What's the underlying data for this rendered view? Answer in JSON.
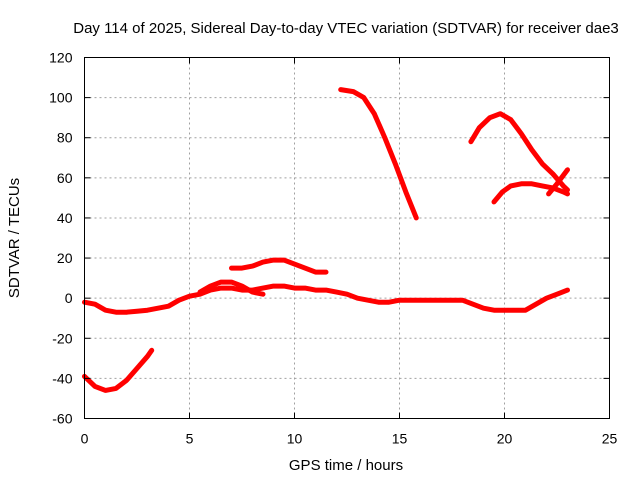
{
  "chart_data": {
    "type": "line",
    "title": "Day 114 of 2025, Sidereal Day-to-day VTEC variation (SDTVAR) for receiver dae3",
    "xlabel": "GPS time / hours",
    "ylabel": "SDTVAR / TECUs",
    "xlim": [
      0,
      25
    ],
    "ylim": [
      -60,
      120
    ],
    "xticks": [
      "0",
      "5",
      "10",
      "15",
      "20",
      "25"
    ],
    "yticks": [
      "-60",
      "-40",
      "-20",
      "0",
      "20",
      "40",
      "60",
      "80",
      "100",
      "120"
    ],
    "grid": true,
    "color": "#ff0000",
    "series": [
      {
        "name": "arc1",
        "points": [
          [
            0,
            -2
          ],
          [
            0.5,
            -3
          ],
          [
            1,
            -6
          ],
          [
            1.5,
            -7
          ],
          [
            2,
            -7
          ],
          [
            2.5,
            -6.5
          ],
          [
            3,
            -6
          ],
          [
            3.5,
            -5
          ],
          [
            4,
            -4
          ],
          [
            4.5,
            -1
          ],
          [
            5,
            1
          ],
          [
            5.5,
            2
          ],
          [
            6,
            4
          ],
          [
            6.5,
            5
          ],
          [
            7,
            5
          ],
          [
            7.5,
            4
          ],
          [
            8,
            4
          ],
          [
            8.5,
            5
          ],
          [
            9,
            6
          ],
          [
            9.5,
            6
          ],
          [
            10,
            5
          ],
          [
            10.5,
            5
          ],
          [
            11,
            4
          ],
          [
            11.5,
            4
          ],
          [
            12,
            3
          ],
          [
            12.5,
            2
          ],
          [
            13,
            0
          ],
          [
            13.5,
            -1
          ],
          [
            14,
            -2
          ],
          [
            14.5,
            -2
          ],
          [
            15,
            -1
          ],
          [
            15.5,
            -1
          ],
          [
            16,
            -1
          ],
          [
            16.5,
            -1
          ],
          [
            17,
            -1
          ],
          [
            17.5,
            -1
          ],
          [
            18,
            -1
          ],
          [
            18.5,
            -3
          ],
          [
            19,
            -5
          ],
          [
            19.5,
            -6
          ],
          [
            20,
            -6
          ],
          [
            20.5,
            -6
          ],
          [
            21,
            -6
          ],
          [
            21.5,
            -3
          ],
          [
            22,
            0
          ],
          [
            22.5,
            2
          ],
          [
            23,
            4
          ]
        ]
      },
      {
        "name": "arc2",
        "points": [
          [
            0,
            -39
          ],
          [
            0.5,
            -44
          ],
          [
            1,
            -46
          ],
          [
            1.5,
            -45
          ],
          [
            2,
            -41
          ],
          [
            2.5,
            -35
          ],
          [
            3,
            -29
          ],
          [
            3.2,
            -26
          ]
        ]
      },
      {
        "name": "arc3",
        "points": [
          [
            5.5,
            3
          ],
          [
            6,
            6
          ],
          [
            6.5,
            8
          ],
          [
            7,
            8
          ],
          [
            7.5,
            6
          ],
          [
            8,
            3
          ],
          [
            8.5,
            2
          ]
        ]
      },
      {
        "name": "arc4",
        "points": [
          [
            7,
            15
          ],
          [
            7.5,
            15
          ],
          [
            8,
            16
          ],
          [
            8.5,
            18
          ],
          [
            9,
            19
          ],
          [
            9.5,
            19
          ],
          [
            10,
            17
          ],
          [
            10.5,
            15
          ],
          [
            11,
            13
          ],
          [
            11.5,
            13
          ]
        ]
      },
      {
        "name": "arc5",
        "points": [
          [
            12.2,
            104
          ],
          [
            12.8,
            103
          ],
          [
            13.3,
            100
          ],
          [
            13.8,
            92
          ],
          [
            14.3,
            80
          ],
          [
            14.8,
            67
          ],
          [
            15.3,
            53
          ],
          [
            15.8,
            40
          ]
        ]
      },
      {
        "name": "arc6",
        "points": [
          [
            18.4,
            78
          ],
          [
            18.8,
            85
          ],
          [
            19.3,
            90
          ],
          [
            19.8,
            92
          ],
          [
            20.3,
            89
          ],
          [
            20.8,
            82
          ],
          [
            21.3,
            74
          ],
          [
            21.8,
            67
          ],
          [
            22.3,
            62
          ],
          [
            22.8,
            56
          ],
          [
            23,
            54
          ]
        ]
      },
      {
        "name": "arc7",
        "points": [
          [
            19.5,
            48
          ],
          [
            19.9,
            53
          ],
          [
            20.3,
            56
          ],
          [
            20.8,
            57
          ],
          [
            21.3,
            57
          ],
          [
            21.8,
            56
          ],
          [
            22.3,
            55
          ],
          [
            22.8,
            53
          ],
          [
            23,
            52
          ]
        ]
      },
      {
        "name": "arc8",
        "points": [
          [
            22.1,
            52
          ],
          [
            22.5,
            57
          ],
          [
            23,
            64
          ]
        ]
      }
    ]
  }
}
